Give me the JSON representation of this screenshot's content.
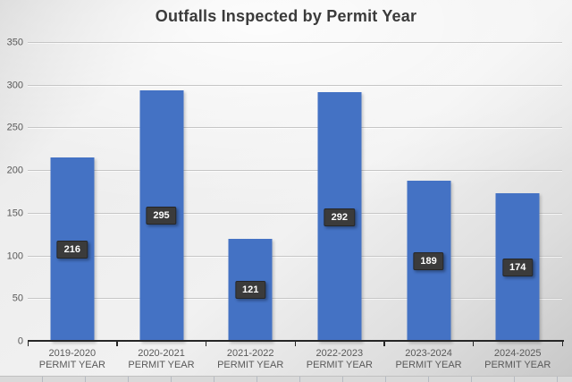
{
  "chart_data": {
    "type": "bar",
    "title": "Outfalls Inspected by Permit Year",
    "categories": [
      "2019-2020 PERMIT YEAR",
      "2020-2021 PERMIT YEAR",
      "2021-2022 PERMIT YEAR",
      "2022-2023 PERMIT YEAR",
      "2023-2024 PERMIT YEAR",
      "2024-2025 PERMIT YEAR"
    ],
    "values": [
      216,
      295,
      121,
      292,
      189,
      174
    ],
    "data_labels": [
      "216",
      "295",
      "121",
      "292",
      "189",
      "174"
    ],
    "xlabel": "",
    "ylabel": "",
    "ylim": [
      0,
      350
    ],
    "yticks": [
      0,
      50,
      100,
      150,
      200,
      250,
      300,
      350
    ],
    "grid": true,
    "legend": false,
    "colors": {
      "bar": "#4472C4",
      "data_label_bg": "#3B3B3B",
      "data_label_text": "#FFFFFF",
      "axis_line": "#262626",
      "tick_label": "#595959",
      "title_text": "#3B3B3B",
      "gridline": "#C6C6C6"
    }
  }
}
